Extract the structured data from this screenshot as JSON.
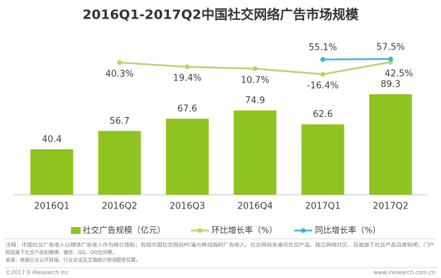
{
  "chart_data": {
    "type": "bar",
    "title": "2016Q1-2017Q2中国社交网络广告市场规模",
    "categories": [
      "2016Q1",
      "2016Q2",
      "2016Q3",
      "2016Q4",
      "2017Q1",
      "2017Q2"
    ],
    "ylim": [
      0,
      100
    ],
    "y2lim": [
      -600,
      210
    ],
    "series": [
      {
        "name": "社交广告规模（亿元）",
        "type": "bar",
        "color": "#8fc31f",
        "values": [
          40.4,
          56.7,
          67.6,
          74.9,
          62.6,
          89.3
        ]
      },
      {
        "name": "环比增长率（%）",
        "type": "line",
        "axis": "y2",
        "color": "#b5d56a",
        "values": [
          null,
          40.3,
          19.4,
          10.7,
          -16.4,
          42.5
        ],
        "value_labels": [
          null,
          "40.3%",
          "19.4%",
          "10.7%",
          "-16.4%",
          "42.5%"
        ]
      },
      {
        "name": "同比增长率（%）",
        "type": "line",
        "axis": "y2",
        "color": "#3cb5d8",
        "values": [
          null,
          null,
          null,
          null,
          55.1,
          57.5
        ],
        "value_labels": [
          null,
          null,
          null,
          null,
          "55.1%",
          "57.5%"
        ]
      }
    ],
    "notes": [
      "注释：中国社交广告收入以媒体广告收入作为统计指标；包括中国社交网站PC端与移动端的广告收入。社交网站含通讯社交产品、独立网络社区、百度旗下社交产品百度贴吧，门户",
      "网站旗下社交产品如微博、微信、QQ、QQ空间等。",
      "来源：根据企业公开财报、行业访谈及艾瑞统计预测模型估算。"
    ],
    "footer_left": "©2017.9 iResearch Inc",
    "footer_right": "www.iresearch.com.cn"
  }
}
